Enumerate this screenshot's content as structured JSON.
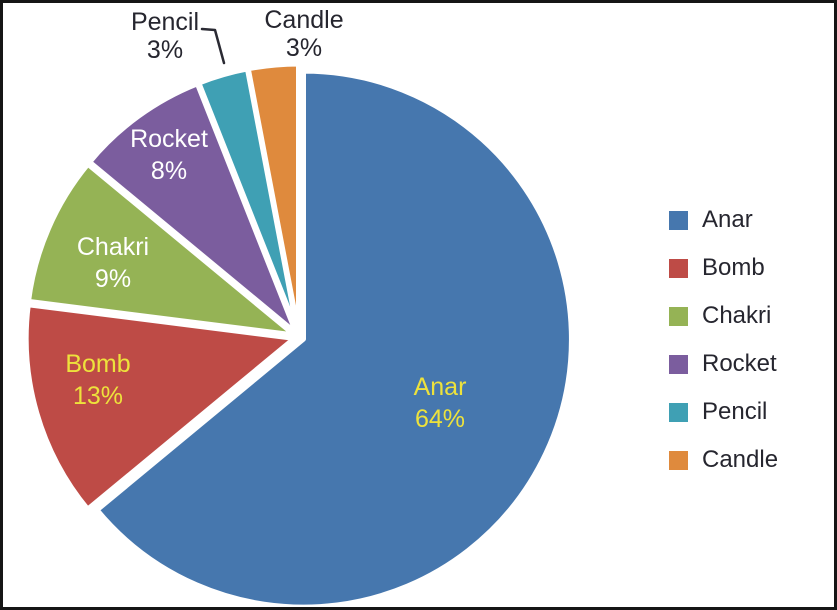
{
  "figure": {
    "background": "#ffffff",
    "border_color": "#151515"
  },
  "chart_data": {
    "type": "pie",
    "title": "",
    "categories": [
      "Anar",
      "Bomb",
      "Chakri",
      "Rocket",
      "Pencil",
      "Candle"
    ],
    "values": [
      64,
      13,
      9,
      8,
      3,
      3
    ],
    "unit": "%",
    "display_labels": [
      "64%",
      "13%",
      "9%",
      "8%",
      "3%",
      "3%"
    ],
    "colors": [
      "#4677AE",
      "#BE4B46",
      "#95B355",
      "#7B5D9E",
      "#3FA0B4",
      "#DF8A3D"
    ],
    "label_text_colors": [
      "#EDE23C",
      "#EDE23C",
      "#FFFFFF",
      "#FFFFFF",
      "#26262F",
      "#26262F"
    ],
    "label_placements": [
      "inside",
      "inside",
      "inside",
      "inside",
      "outside",
      "outside"
    ],
    "start_angle_deg": 0,
    "direction": "clockwise",
    "exploded": true,
    "grid": false,
    "legend_position": "right",
    "annotations": {
      "leader_line_for": "Pencil"
    }
  }
}
